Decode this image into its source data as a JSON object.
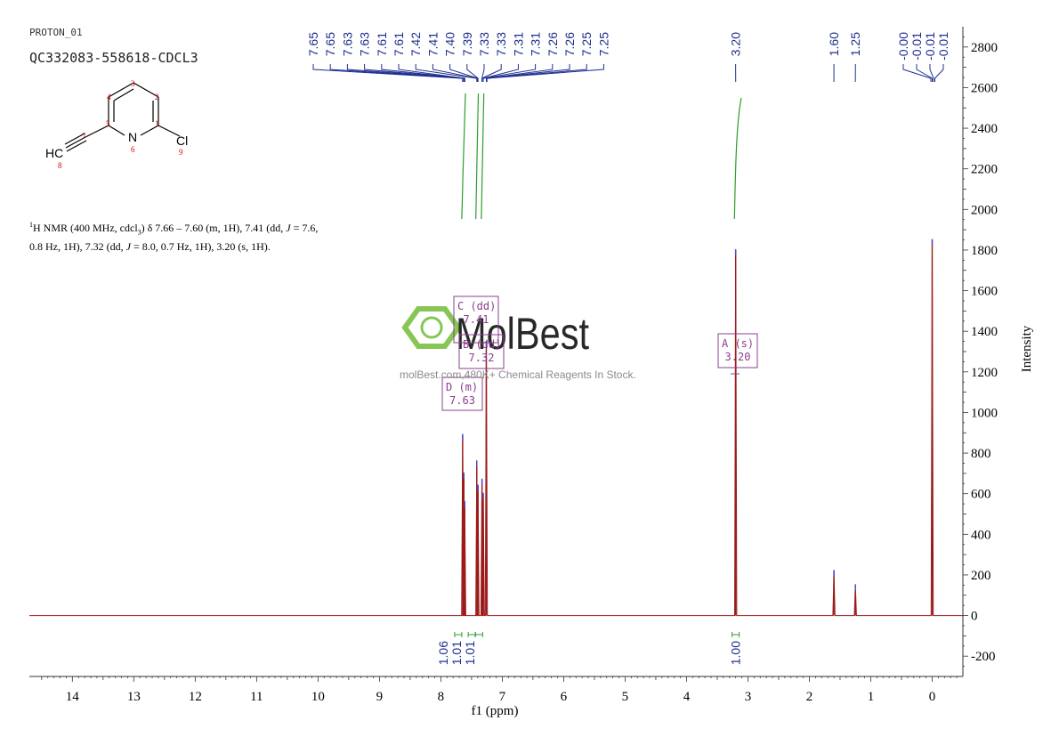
{
  "header": {
    "experiment": "PROTON_01",
    "sample": "QC332083-558618-CDCL3"
  },
  "description": {
    "line1_a": "H NMR (400 MHz, cdcl",
    "line1_sup": "1",
    "line1_sub": "3",
    "line1_b": ") δ 7.66 – 7.60 (m, 1H), 7.41 (dd, ",
    "j": "J",
    "line1_c": " = 7.6,",
    "line2_a": "0.8 Hz, 1H), 7.32 (dd, ",
    "line2_b": " = 8.0, 0.7 Hz, 1H), 3.20 (s, 1H)."
  },
  "watermark": {
    "brand": "MolBest",
    "tagline": "molBest.com,480K+ Chemical Reagents In Stock."
  },
  "structure": {
    "atom_numbers": [
      "1",
      "2",
      "3",
      "4",
      "5",
      "6",
      "7",
      "8",
      "9"
    ],
    "labels": {
      "N": "N",
      "Cl": "Cl",
      "HC": "HC"
    }
  },
  "peak_labels": [
    "7.65",
    "7.65",
    "7.63",
    "7.63",
    "7.61",
    "7.61",
    "7.42",
    "7.41",
    "7.40",
    "7.39",
    "7.33",
    "7.33",
    "7.31",
    "7.31",
    "7.26",
    "7.26",
    "7.25",
    "7.25",
    "3.20",
    "1.60",
    "1.25",
    "-0.00",
    "-0.01",
    "-0.01",
    "-0.01"
  ],
  "multiplets": [
    {
      "letter": "C (dd)",
      "shift": "7.41"
    },
    {
      "letter": "B (dd)",
      "shift": "7.32"
    },
    {
      "letter": "D (m)",
      "shift": "7.63"
    },
    {
      "letter": "A (s)",
      "shift": "3.20"
    }
  ],
  "integrals": [
    "1.06",
    "1.01",
    "1.01",
    "1.00"
  ],
  "chart_data": {
    "type": "line",
    "xlabel": "f1 (ppm)",
    "ylabel": "Intensity",
    "xlim": [
      14.7,
      -0.5
    ],
    "ylim": [
      -300,
      2900
    ],
    "x_ticks": [
      14,
      13,
      12,
      11,
      10,
      9,
      8,
      7,
      6,
      5,
      4,
      3,
      2,
      1,
      0
    ],
    "y_ticks": [
      -200,
      0,
      200,
      400,
      600,
      800,
      1000,
      1200,
      1400,
      1600,
      1800,
      2000,
      2200,
      2400,
      2600,
      2800
    ],
    "peaks": [
      {
        "x": 7.645,
        "y": 890
      },
      {
        "x": 7.625,
        "y": 700
      },
      {
        "x": 7.612,
        "y": 560
      },
      {
        "x": 7.415,
        "y": 760
      },
      {
        "x": 7.395,
        "y": 640
      },
      {
        "x": 7.33,
        "y": 670
      },
      {
        "x": 7.31,
        "y": 600
      },
      {
        "x": 7.26,
        "y": 1350
      },
      {
        "x": 3.2,
        "y": 1800
      },
      {
        "x": 1.6,
        "y": 220
      },
      {
        "x": 1.25,
        "y": 150
      },
      {
        "x": 0.0,
        "y": 1850
      }
    ]
  },
  "colors": {
    "spectrum": "#9b1b1b",
    "labels": "#1f2f8f",
    "integral": "#2e9c2e",
    "annotation": "#8a3f8f",
    "watermark_green": "#7bc043",
    "axis": "#333333"
  }
}
